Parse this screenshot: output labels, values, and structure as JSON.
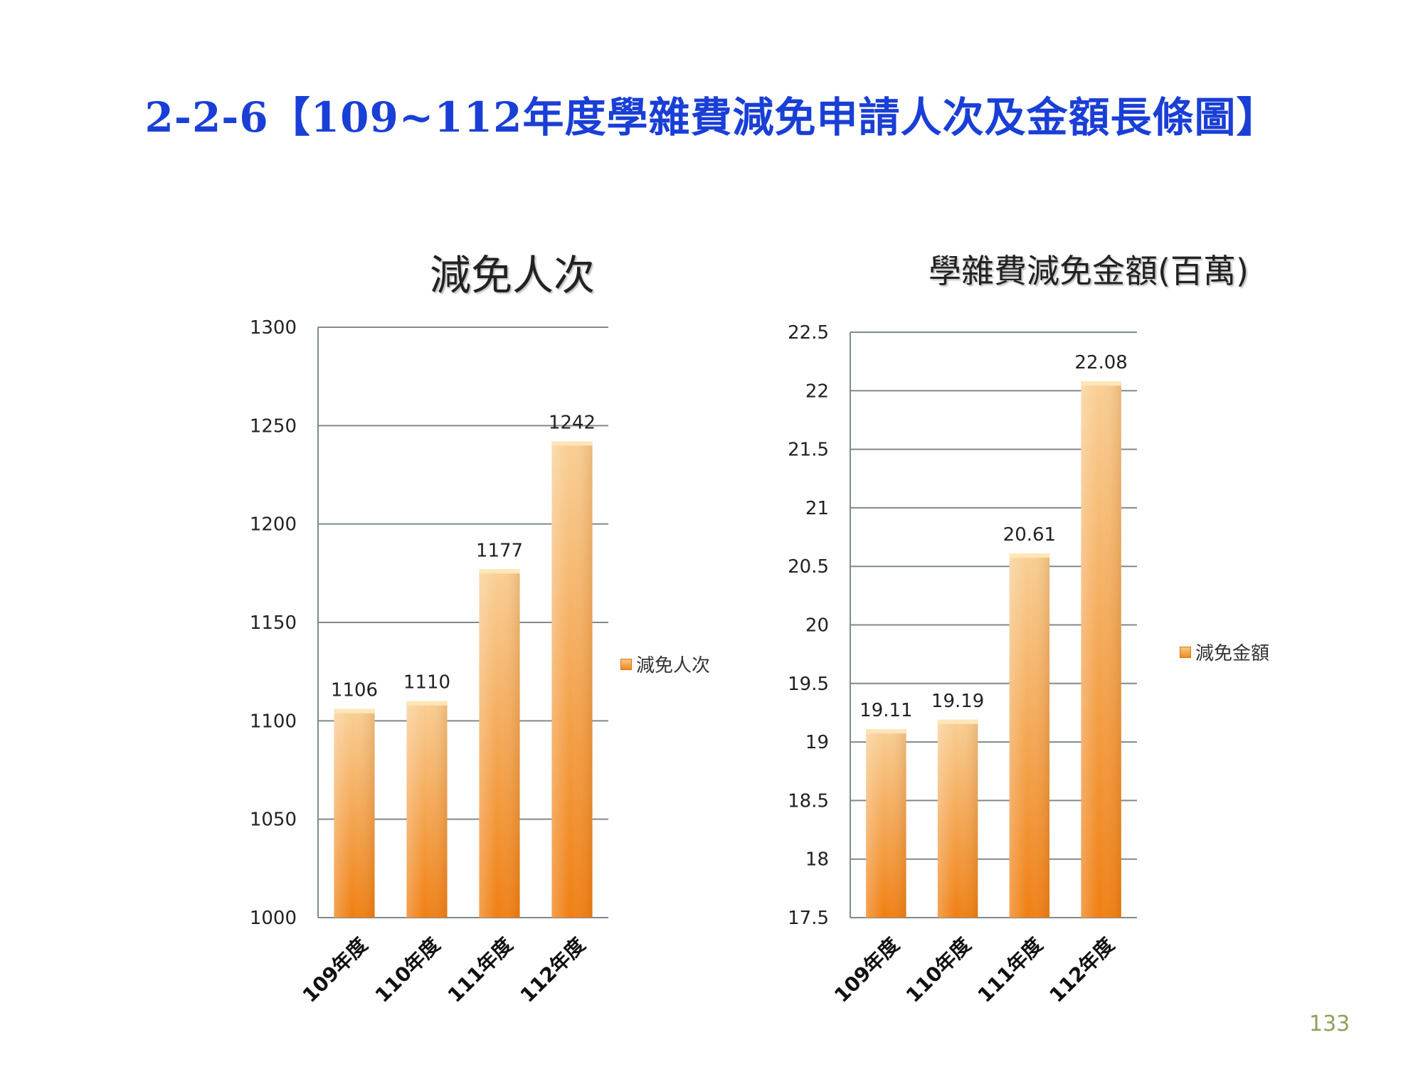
{
  "page_title": "2-2-6【109~112年度學雜費減免申請人次及金額長條圖】",
  "page_number": "133",
  "colors": {
    "title": "#1a3fd6",
    "bar_light": "#f9cf95",
    "bar_dark": "#f07f12",
    "grid": "#7f8a8a",
    "page_number": "#8aa25a"
  },
  "chart_data": [
    {
      "type": "bar",
      "title": "減免人次",
      "categories": [
        "109年度",
        "110年度",
        "111年度",
        "112年度"
      ],
      "series": [
        {
          "name": "減免人次",
          "values": [
            1106,
            1110,
            1177,
            1242
          ]
        }
      ],
      "data_labels": [
        "1106",
        "1110",
        "1177",
        "1242"
      ],
      "ylim": [
        1000,
        1300
      ],
      "yticks": [
        1000,
        1050,
        1100,
        1150,
        1200,
        1250,
        1300
      ],
      "ytick_labels": [
        "1000",
        "1050",
        "1100",
        "1150",
        "1200",
        "1250",
        "1300"
      ],
      "grid": true,
      "legend": "right"
    },
    {
      "type": "bar",
      "title": "學雜費減免金額(百萬)",
      "categories": [
        "109年度",
        "110年度",
        "111年度",
        "112年度"
      ],
      "series": [
        {
          "name": "減免金額",
          "values": [
            19.11,
            19.19,
            20.61,
            22.08
          ]
        }
      ],
      "data_labels": [
        "19.11",
        "19.19",
        "20.61",
        "22.08"
      ],
      "ylim": [
        17.5,
        22.5
      ],
      "yticks": [
        17.5,
        18,
        18.5,
        19,
        19.5,
        20,
        20.5,
        21,
        21.5,
        22,
        22.5
      ],
      "ytick_labels": [
        "17.5",
        "18",
        "18.5",
        "19",
        "19.5",
        "20",
        "20.5",
        "21",
        "21.5",
        "22",
        "22.5"
      ],
      "grid": true,
      "legend": "right"
    }
  ]
}
